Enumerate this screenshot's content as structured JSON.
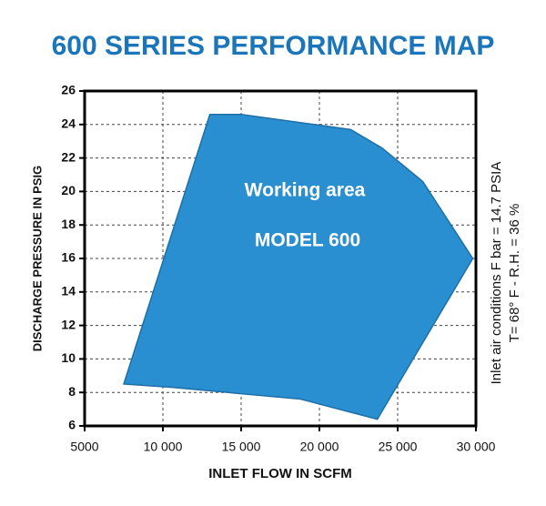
{
  "chart_data": {
    "type": "polygon",
    "title": "600 SERIES PERFORMANCE MAP",
    "x_label": "INLET FLOW IN SCFM",
    "y_label": "DISCHARGE PRESSURE IN PSIG",
    "x": [
      7500,
      13000,
      15000,
      22000,
      24000,
      26600,
      29800,
      23700,
      18800,
      10600
    ],
    "values": [
      8.5,
      24.6,
      24.6,
      23.7,
      22.6,
      20.6,
      16,
      6.4,
      7.6,
      8.3
    ],
    "color": "#2a8fd0",
    "xlim": [
      5000,
      30000
    ],
    "xticks": [
      5000,
      {
        "value": 10000,
        "label": "10 000"
      },
      {
        "value": 15000,
        "label": "15 000"
      },
      {
        "value": 20000,
        "label": "20 000"
      },
      {
        "value": 25000,
        "label": "25 000"
      },
      {
        "value": 30000,
        "label": "30 000"
      }
    ],
    "ylim": [
      6,
      26
    ],
    "yticks": [
      6,
      8,
      10,
      12,
      14,
      16,
      18,
      20,
      22,
      24,
      26
    ],
    "grid": true,
    "annotations": [
      "Working area",
      "MODEL 600"
    ],
    "side_note": [
      "Inlet air conditions  F bar = 14.7 PSIA",
      "T= 68° F - R.H. = 36 %"
    ]
  }
}
